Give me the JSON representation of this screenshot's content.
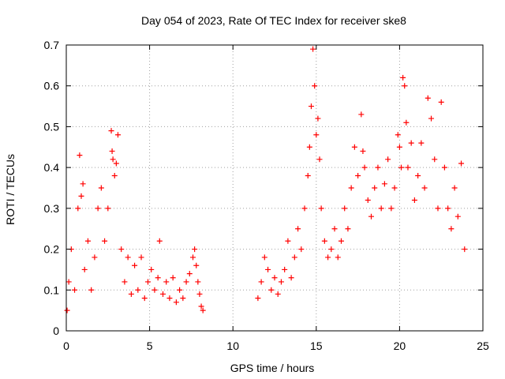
{
  "chart_data": {
    "type": "scatter",
    "title": "Day 054 of 2023, Rate Of TEC Index for receiver ske8",
    "xlabel": "GPS time / hours",
    "ylabel": "ROTI / TECUs",
    "xlim": [
      0,
      25
    ],
    "ylim": [
      0,
      0.7
    ],
    "xticks": [
      0,
      5,
      10,
      15,
      20,
      25
    ],
    "yticks": [
      0,
      0.1,
      0.2,
      0.3,
      0.4,
      0.5,
      0.6,
      0.7
    ],
    "xtick_labels": [
      "0",
      "5",
      "10",
      "15",
      "20",
      "25"
    ],
    "ytick_labels": [
      "0",
      "0.1",
      "0.2",
      "0.3",
      "0.4",
      "0.5",
      "0.6",
      "0.7"
    ],
    "grid": true,
    "marker": "+",
    "color": "#ff0000",
    "series": [
      {
        "x": [
          0.05,
          0.15,
          0.3,
          0.5,
          0.7,
          0.8,
          0.9,
          1.0,
          1.1,
          1.3,
          1.5,
          1.7,
          1.9,
          2.1,
          2.3,
          2.5,
          2.7,
          2.75,
          2.8,
          2.9,
          3.0,
          3.1,
          3.3,
          3.5,
          3.7,
          3.9,
          4.1,
          4.3,
          4.5,
          4.7,
          4.9,
          5.1,
          5.3,
          5.5,
          5.6,
          5.8,
          6.0,
          6.2,
          6.4,
          6.6,
          6.8,
          7.0,
          7.2,
          7.4,
          7.6,
          7.7,
          7.8,
          7.9,
          8.0,
          8.1,
          8.2,
          11.5,
          11.7,
          11.9,
          12.1,
          12.3,
          12.5,
          12.7,
          12.9,
          13.1,
          13.3,
          13.5,
          13.7,
          13.9,
          14.1,
          14.3,
          14.5,
          14.6,
          14.7,
          14.8,
          14.9,
          15.0,
          15.1,
          15.2,
          15.3,
          15.5,
          15.7,
          15.9,
          16.1,
          16.3,
          16.5,
          16.7,
          16.9,
          17.1,
          17.3,
          17.5,
          17.7,
          17.8,
          17.9,
          18.1,
          18.3,
          18.5,
          18.7,
          18.9,
          19.1,
          19.3,
          19.5,
          19.7,
          19.9,
          20.0,
          20.1,
          20.2,
          20.3,
          20.4,
          20.5,
          20.7,
          20.9,
          21.1,
          21.3,
          21.5,
          21.7,
          21.9,
          22.1,
          22.3,
          22.5,
          22.7,
          22.9,
          23.1,
          23.3,
          23.5,
          23.7,
          23.9
        ],
        "y": [
          0.05,
          0.12,
          0.2,
          0.1,
          0.3,
          0.43,
          0.33,
          0.36,
          0.15,
          0.22,
          0.1,
          0.18,
          0.3,
          0.35,
          0.22,
          0.3,
          0.49,
          0.44,
          0.42,
          0.38,
          0.41,
          0.48,
          0.2,
          0.12,
          0.18,
          0.09,
          0.16,
          0.1,
          0.18,
          0.08,
          0.12,
          0.15,
          0.1,
          0.13,
          0.22,
          0.09,
          0.12,
          0.08,
          0.13,
          0.07,
          0.1,
          0.08,
          0.12,
          0.14,
          0.18,
          0.2,
          0.16,
          0.12,
          0.09,
          0.06,
          0.05,
          0.08,
          0.12,
          0.18,
          0.15,
          0.1,
          0.13,
          0.09,
          0.12,
          0.15,
          0.22,
          0.13,
          0.18,
          0.25,
          0.2,
          0.3,
          0.38,
          0.45,
          0.55,
          0.69,
          0.6,
          0.48,
          0.52,
          0.42,
          0.3,
          0.22,
          0.18,
          0.2,
          0.25,
          0.18,
          0.22,
          0.3,
          0.25,
          0.35,
          0.45,
          0.38,
          0.53,
          0.44,
          0.4,
          0.32,
          0.28,
          0.35,
          0.4,
          0.3,
          0.36,
          0.42,
          0.3,
          0.35,
          0.48,
          0.45,
          0.4,
          0.62,
          0.6,
          0.51,
          0.4,
          0.46,
          0.32,
          0.38,
          0.46,
          0.35,
          0.57,
          0.52,
          0.42,
          0.3,
          0.56,
          0.4,
          0.3,
          0.25,
          0.35,
          0.28,
          0.41,
          0.2
        ]
      }
    ]
  }
}
